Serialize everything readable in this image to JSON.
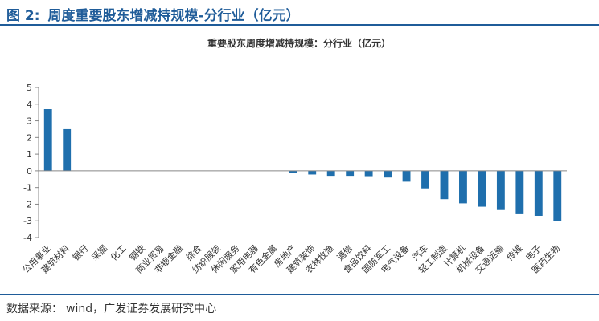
{
  "figure": {
    "number": "图 2:",
    "caption": "周度重要股东增减持规模-分行业（亿元）"
  },
  "source": {
    "label": "数据来源：",
    "text": "wind，广发证券发展研究中心"
  },
  "colors": {
    "bar": "#1f6fad",
    "accent": "#1f5c99",
    "axis": "#888888",
    "text": "#333333"
  },
  "chart_data": {
    "type": "bar",
    "title": "重要股东周度增减持规模：分行业（亿元）",
    "xlabel": "",
    "ylabel": "",
    "ylim": [
      -4,
      5
    ],
    "yticks": [
      -4,
      -3,
      -2,
      -1,
      0,
      1,
      2,
      3,
      4,
      5
    ],
    "grid": false,
    "legend": "none",
    "categories": [
      "公用事业",
      "建筑材料",
      "银行",
      "采掘",
      "化工",
      "钢铁",
      "商业贸易",
      "非银金融",
      "综合",
      "纺织服装",
      "休闲服务",
      "家用电器",
      "有色金属",
      "房地产",
      "建筑装饰",
      "农林牧渔",
      "通信",
      "食品饮料",
      "国防军工",
      "电气设备",
      "汽车",
      "轻工制造",
      "计算机",
      "机械设备",
      "交通运输",
      "传媒",
      "电子",
      "医药生物"
    ],
    "values": [
      3.7,
      2.5,
      0,
      0,
      0,
      0,
      0,
      0,
      0,
      0,
      0,
      0,
      0,
      -0.12,
      -0.22,
      -0.3,
      -0.3,
      -0.32,
      -0.4,
      -0.65,
      -1.05,
      -1.7,
      -1.95,
      -2.15,
      -2.35,
      -2.6,
      -2.7,
      -3.0
    ]
  }
}
